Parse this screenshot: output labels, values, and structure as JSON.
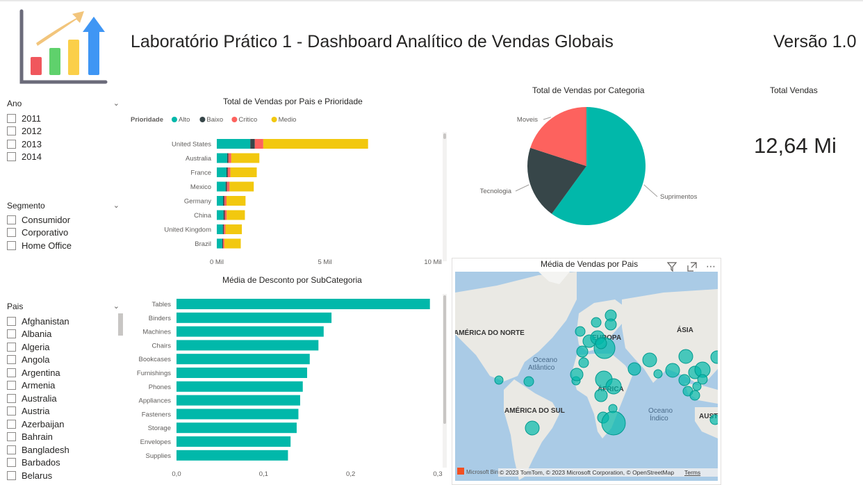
{
  "header": {
    "title": "Laboratório Prático 1 - Dashboard Analítico de Vendas Globais",
    "version": "Versão 1.0",
    "logo_icon": "bar-chart-growth-icon"
  },
  "colors": {
    "teal": "#01b8aa",
    "dark": "#374649",
    "red": "#fd625e",
    "yellow": "#f2c80f"
  },
  "slicers": {
    "ano": {
      "title": "Ano",
      "items": [
        "2011",
        "2012",
        "2013",
        "2014"
      ]
    },
    "segmento": {
      "title": "Segmento",
      "items": [
        "Consumidor",
        "Corporativo",
        "Home Office"
      ]
    },
    "pais": {
      "title": "Pais",
      "items": [
        "Afghanistan",
        "Albania",
        "Algeria",
        "Angola",
        "Argentina",
        "Armenia",
        "Australia",
        "Austria",
        "Azerbaijan",
        "Bahrain",
        "Bangladesh",
        "Barbados",
        "Belarus"
      ]
    }
  },
  "kpi": {
    "title": "Total Vendas",
    "value": "12,64 Mi"
  },
  "map": {
    "title": "Média de Vendas por Pais",
    "labels": {
      "na": "AMÉRICA DO NORTE",
      "eu": "EUROPA",
      "asia": "ÁSIA",
      "africa": "ÁFRICA",
      "sa": "AMÉRICA DO SUL",
      "aus": "AUST",
      "atl1": "Oceano",
      "atl2": "Atlântico",
      "ind1": "Oceano",
      "ind2": "Índico"
    },
    "bing": "Microsoft Bing",
    "copyright": "© 2023 TomTom, © 2023 Microsoft Corporation, © OpenStreetMap",
    "terms": "Terms",
    "filter_icon": "filter-icon",
    "focus_icon": "focus-mode-icon",
    "more_icon": "more-options-icon"
  },
  "chart_data": [
    {
      "type": "bar",
      "stacked": true,
      "orientation": "horizontal",
      "title": "Total de Vendas por Pais e Prioridade",
      "legend_title": "Prioridade",
      "legend_position": "top-left",
      "categories": [
        "United States",
        "Australia",
        "France",
        "Mexico",
        "Germany",
        "China",
        "United Kingdom",
        "Brazil"
      ],
      "series": [
        {
          "name": "Alto",
          "values": [
            1550,
            480,
            450,
            410,
            290,
            310,
            280,
            250
          ]
        },
        {
          "name": "Baixo",
          "values": [
            210,
            60,
            60,
            60,
            60,
            60,
            50,
            40
          ]
        },
        {
          "name": "Critico",
          "values": [
            390,
            130,
            120,
            120,
            100,
            90,
            70,
            60
          ]
        },
        {
          "name": "Medio",
          "values": [
            4850,
            1300,
            1220,
            1120,
            880,
            840,
            760,
            760
          ]
        }
      ],
      "x_ticks": [
        "0 Mil",
        "5 Mil",
        "10 Mil"
      ],
      "xlim": [
        0,
        10000
      ]
    },
    {
      "type": "pie",
      "title": "Total de Vendas por Categoria",
      "categories": [
        "Suprimentos",
        "Tecnologia",
        "Moveis"
      ],
      "values": [
        60,
        20,
        20
      ]
    },
    {
      "type": "bar",
      "orientation": "horizontal",
      "title": "Média de Desconto por SubCategoria",
      "categories": [
        "Tables",
        "Binders",
        "Machines",
        "Chairs",
        "Bookcases",
        "Furnishings",
        "Phones",
        "Appliances",
        "Fasteners",
        "Storage",
        "Envelopes",
        "Supplies"
      ],
      "values": [
        0.291,
        0.178,
        0.169,
        0.163,
        0.153,
        0.15,
        0.145,
        0.142,
        0.14,
        0.138,
        0.131,
        0.128
      ],
      "x_ticks": [
        "0,0",
        "0,1",
        "0,2",
        "0,3"
      ],
      "xlim": [
        0,
        0.3
      ]
    }
  ]
}
